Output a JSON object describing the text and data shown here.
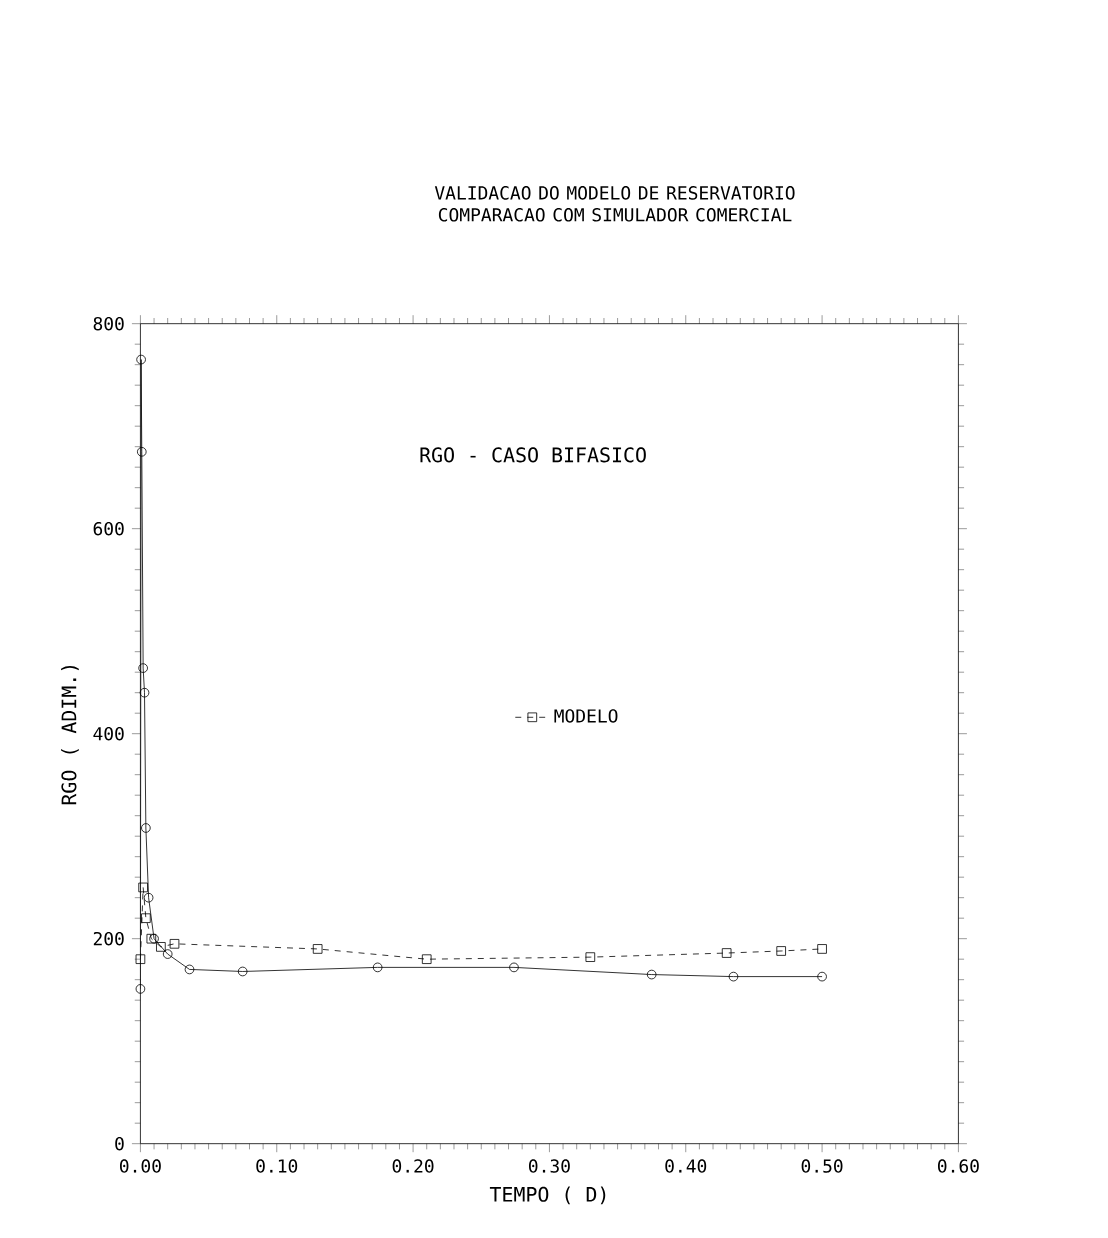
{
  "chart_data": {
    "type": "line",
    "title": "VALIDACAO DO MODELO DE RESERVATORIO\nCOMPARACAO COM SIMULADOR COMERCIAL",
    "subtitle": "RGO - CASO BIFASICO",
    "xlabel": "TEMPO ( D)",
    "ylabel": "RGO ( ADIM.)",
    "series": [
      {
        "color": "#000000",
        "marker": "circle",
        "line_style": "solid",
        "x": [
          0,
          0.0005,
          0.001,
          0.002,
          0.003,
          0.004,
          0.006,
          0.01,
          0.02,
          0.036,
          0.075,
          0.174,
          0.274,
          0.375,
          0.435,
          0.5
        ],
        "values": [
          151,
          765,
          675,
          464,
          440,
          308,
          240,
          200,
          185,
          170,
          168,
          172,
          172,
          165,
          163,
          163
        ]
      },
      {
        "name": "MODELO",
        "color": "#000000",
        "marker": "square",
        "line_style": "dashed",
        "x": [
          0,
          0.002,
          0.004,
          0.008,
          0.015,
          0.025,
          0.13,
          0.21,
          0.33,
          0.43,
          0.47,
          0.5
        ],
        "values": [
          180,
          250,
          220,
          200,
          192,
          195,
          190,
          180,
          182,
          186,
          188,
          190
        ]
      }
    ],
    "xlim": [
      0,
      0.6
    ],
    "xticks": [
      {
        "value": 0,
        "label": "0.00"
      },
      {
        "value": 0.1,
        "label": "0.10"
      },
      {
        "value": 0.2,
        "label": "0.20"
      },
      {
        "value": 0.3,
        "label": "0.30"
      },
      {
        "value": 0.4,
        "label": "0.40"
      },
      {
        "value": 0.5,
        "label": "0.50"
      },
      {
        "value": 0.6,
        "label": "0.60"
      }
    ],
    "ylim": [
      0,
      800
    ],
    "yticks": [
      0,
      200,
      400,
      600,
      800
    ],
    "grid": false,
    "legend": "center"
  }
}
